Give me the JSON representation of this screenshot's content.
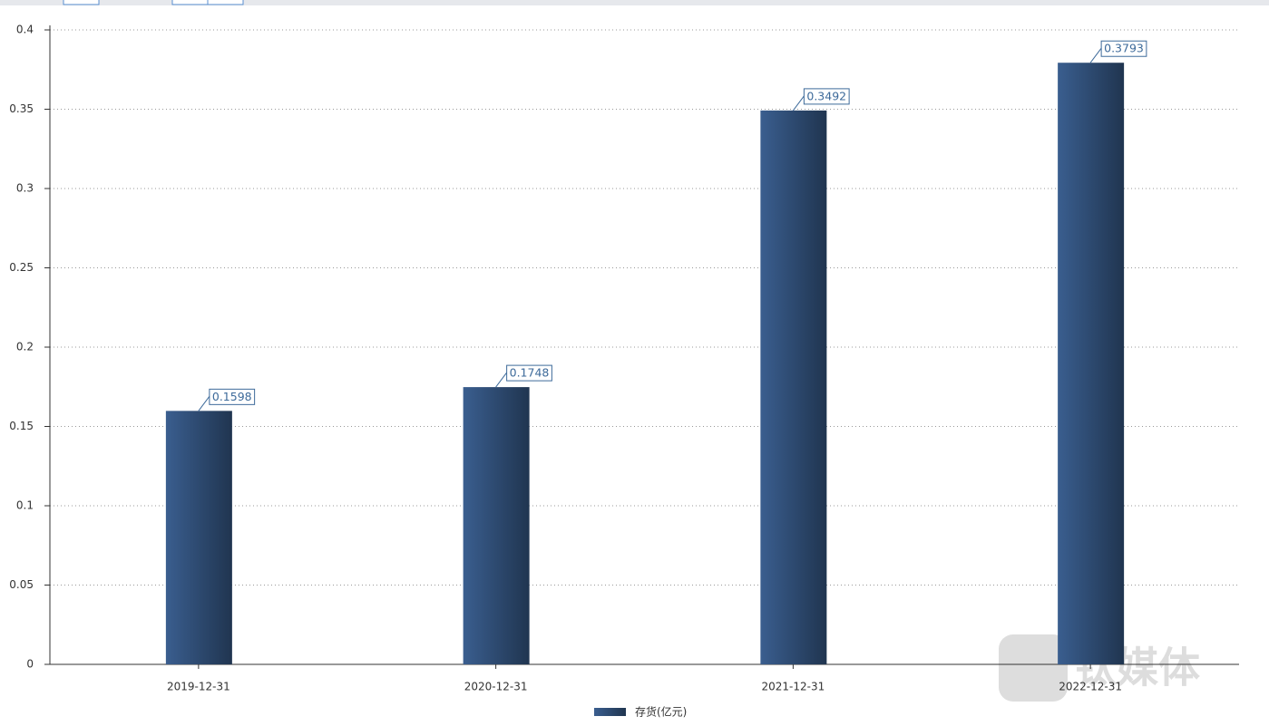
{
  "chart_data": {
    "type": "bar",
    "categories": [
      "2019-12-31",
      "2020-12-31",
      "2021-12-31",
      "2022-12-31"
    ],
    "series": [
      {
        "name": "存货(亿元)",
        "color": "#2e4b72",
        "values": [
          0.1598,
          0.1748,
          0.3492,
          0.3793
        ]
      }
    ],
    "ylim": [
      0,
      0.4
    ],
    "yticks": [
      0,
      0.05,
      0.1,
      0.15,
      0.2,
      0.25,
      0.3,
      0.35,
      0.4
    ],
    "grid": true,
    "legend": "bottom",
    "watermark": "钛媒体"
  }
}
